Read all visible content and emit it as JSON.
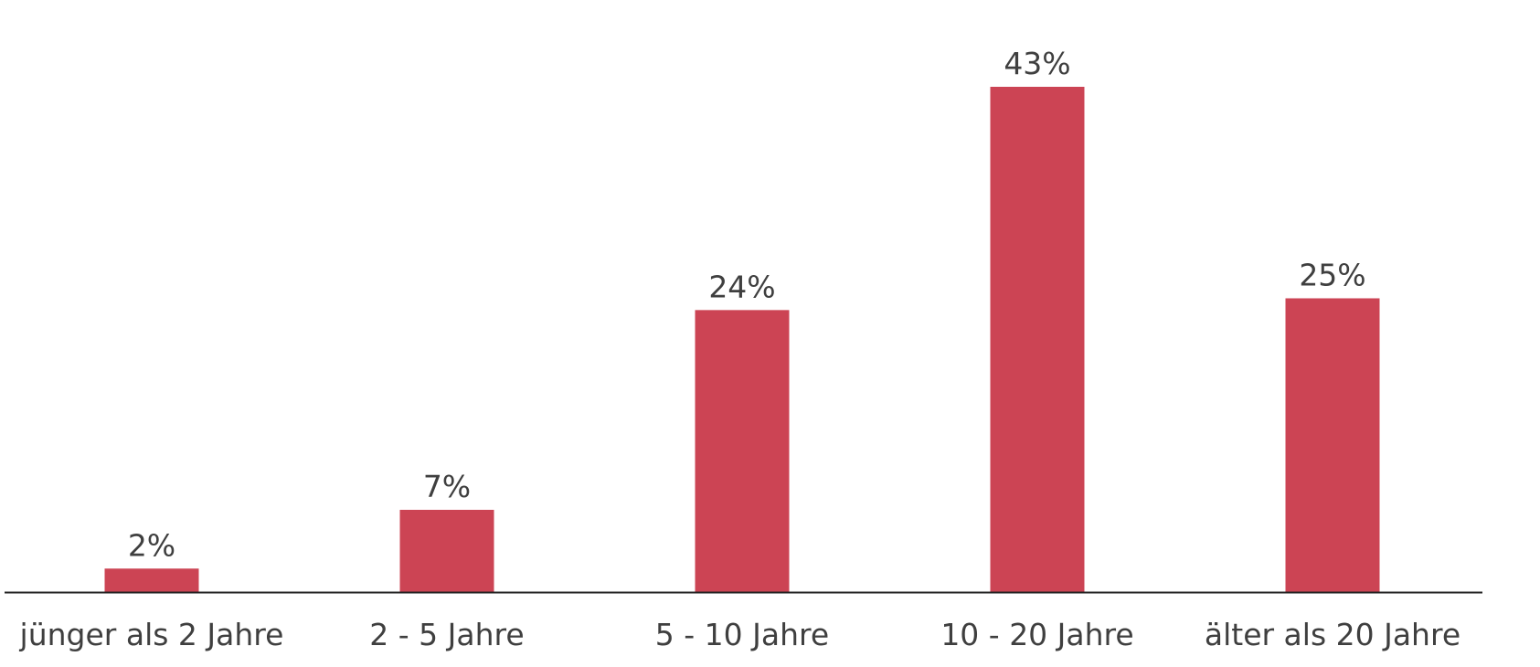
{
  "chart_data": {
    "type": "bar",
    "categories": [
      "jünger als 2 Jahre",
      "2 - 5 Jahre",
      "5 - 10 Jahre",
      "10 - 20 Jahre",
      "älter als 20 Jahre"
    ],
    "values": [
      2,
      7,
      24,
      43,
      25
    ],
    "value_labels": [
      "2%",
      "7%",
      "24%",
      "43%",
      "25%"
    ],
    "unit": "%",
    "title": "",
    "xlabel": "",
    "ylabel": "",
    "ylim": [
      0,
      43
    ],
    "grid": false,
    "legend": "none",
    "colors": {
      "bar": "#cc4454",
      "axis": "#222222",
      "text": "#3f3f3f"
    }
  }
}
